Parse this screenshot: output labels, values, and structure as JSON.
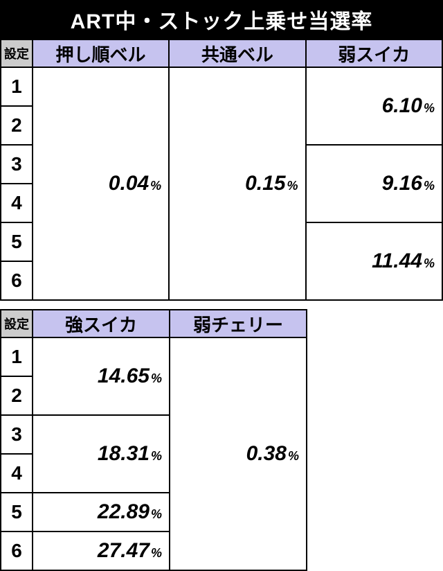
{
  "title": "ART中・ストック上乗せ当選率",
  "header_settei": "設定",
  "percent_sign": "%",
  "colors": {
    "title_bg": "#000000",
    "title_fg": "#ffffff",
    "settei_hdr_bg": "#cccccc",
    "col_hdr_bg": "#c6c3ef",
    "border": "#000000",
    "cell_bg": "#ffffff"
  },
  "settei_rows": [
    "1",
    "2",
    "3",
    "4",
    "5",
    "6"
  ],
  "table1": {
    "columns": [
      "押し順ベル",
      "共通ベル",
      "弱スイカ"
    ],
    "cells": {
      "c0": "0.04",
      "c1": "0.15",
      "c2a": "6.10",
      "c2b": "9.16",
      "c2c": "11.44"
    }
  },
  "table2": {
    "columns": [
      "強スイカ",
      "弱チェリー"
    ],
    "cells": {
      "d0a": "14.65",
      "d0b": "18.31",
      "d0c": "22.89",
      "d0d": "27.47",
      "d1": "0.38"
    }
  }
}
